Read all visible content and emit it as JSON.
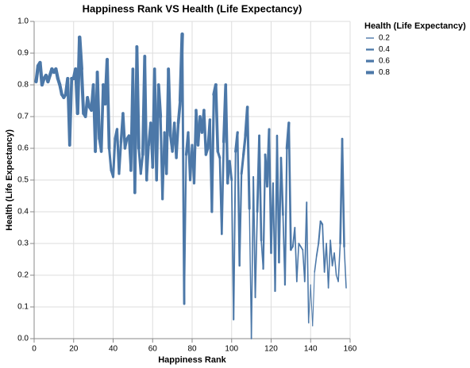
{
  "chart_data": {
    "type": "trail",
    "title": "Happiness Rank VS Health (Life Expectancy)",
    "x_label": "Happiness Rank",
    "y_label": "Health (Life Expectancy)",
    "legend_title": "Health (Life Expectancy)",
    "size_legend": [
      0.2,
      0.4,
      0.6,
      0.8
    ],
    "grid": true,
    "xlim": [
      0,
      160
    ],
    "xticks": [
      0,
      20,
      40,
      60,
      80,
      100,
      120,
      140,
      160
    ],
    "ylim": [
      0,
      1
    ],
    "yticks": [
      {
        "value": 0,
        "label": "0.0"
      },
      0.1,
      0.2,
      0.3,
      0.4,
      0.5,
      0.6,
      0.7,
      0.8,
      0.9,
      {
        "value": 1,
        "label": "1.0"
      }
    ],
    "series": [
      {
        "color": "#4c78a8",
        "x": [
          1,
          2,
          3,
          4,
          5,
          6,
          7,
          8,
          9,
          10,
          11,
          12,
          13,
          14,
          15,
          16,
          17,
          18,
          19,
          20,
          21,
          22,
          23,
          24,
          25,
          26,
          27,
          28,
          29,
          30,
          31,
          32,
          33,
          34,
          35,
          36,
          37,
          38,
          39,
          40,
          41,
          42,
          43,
          44,
          45,
          46,
          47,
          48,
          49,
          50,
          51,
          52,
          53,
          54,
          55,
          56,
          57,
          58,
          59,
          60,
          61,
          62,
          63,
          64,
          65,
          66,
          67,
          68,
          69,
          70,
          71,
          72,
          73,
          74,
          75,
          76,
          77,
          78,
          79,
          80,
          81,
          82,
          83,
          84,
          85,
          86,
          87,
          88,
          89,
          90,
          91,
          92,
          93,
          94,
          95,
          96,
          97,
          98,
          99,
          100,
          101,
          102,
          103,
          104,
          105,
          106,
          107,
          108,
          109,
          110,
          111,
          112,
          113,
          114,
          115,
          116,
          117,
          118,
          119,
          120,
          121,
          122,
          123,
          124,
          125,
          126,
          127,
          128,
          129,
          130,
          131,
          132,
          133,
          134,
          135,
          136,
          137,
          138,
          139,
          140,
          141,
          142,
          143,
          144,
          145,
          146,
          147,
          148,
          149,
          150,
          151,
          152,
          153,
          154,
          155,
          156,
          157,
          158
        ],
        "values": [
          0.81,
          0.86,
          0.87,
          0.8,
          0.82,
          0.83,
          0.81,
          0.83,
          0.85,
          0.84,
          0.85,
          0.82,
          0.8,
          0.77,
          0.76,
          0.77,
          0.82,
          0.61,
          0.82,
          0.82,
          0.85,
          0.71,
          0.95,
          0.85,
          0.71,
          0.7,
          0.76,
          0.73,
          0.72,
          0.8,
          0.59,
          0.84,
          0.63,
          0.59,
          0.8,
          0.74,
          0.88,
          0.6,
          0.53,
          0.51,
          0.63,
          0.66,
          0.52,
          0.62,
          0.71,
          0.6,
          0.63,
          0.64,
          0.53,
          0.85,
          0.46,
          0.92,
          0.6,
          0.52,
          0.58,
          0.89,
          0.5,
          0.61,
          0.68,
          0.54,
          0.85,
          0.5,
          0.8,
          0.7,
          0.44,
          0.65,
          0.52,
          0.85,
          0.64,
          0.59,
          0.68,
          0.57,
          0.68,
          0.75,
          0.96,
          0.11,
          0.58,
          0.65,
          0.5,
          0.61,
          0.49,
          0.72,
          0.61,
          0.7,
          0.65,
          0.72,
          0.58,
          0.6,
          0.69,
          0.4,
          0.77,
          0.8,
          0.59,
          0.57,
          0.33,
          0.62,
          0.8,
          0.49,
          0.56,
          0.5,
          0.06,
          0.59,
          0.65,
          0.23,
          0.52,
          0.58,
          0.64,
          0.73,
          0.41,
          0.0,
          0.51,
          0.13,
          0.4,
          0.64,
          0.31,
          0.22,
          0.58,
          0.48,
          0.66,
          0.27,
          0.49,
          0.15,
          0.64,
          0.24,
          0.57,
          0.39,
          0.17,
          0.6,
          0.68,
          0.28,
          0.29,
          0.35,
          0.18,
          0.3,
          0.29,
          0.28,
          0.18,
          0.43,
          0.05,
          0.17,
          0.04,
          0.21,
          0.26,
          0.3,
          0.37,
          0.36,
          0.21,
          0.3,
          0.16,
          0.31,
          0.23,
          0.27,
          0.2,
          0.18,
          0.3,
          0.63,
          0.29,
          0.16
        ]
      }
    ]
  }
}
